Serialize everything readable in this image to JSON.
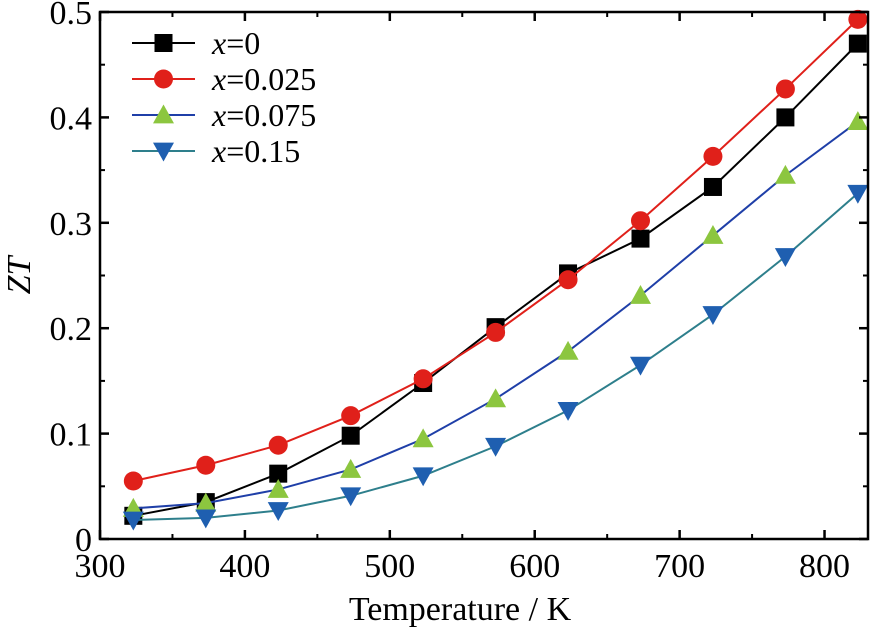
{
  "chart_data": {
    "type": "line",
    "xlabel": "Temperature / K",
    "ylabel": "ZT",
    "xlim": [
      300,
      830
    ],
    "ylim": [
      0,
      0.5
    ],
    "xticks": [
      300,
      400,
      500,
      600,
      700,
      800
    ],
    "yticks": [
      0,
      0.1,
      0.2,
      0.3,
      0.4,
      0.5
    ],
    "xtick_labels": [
      "300",
      "400",
      "500",
      "600",
      "700",
      "800"
    ],
    "ytick_labels": [
      "0",
      "0.1",
      "0.2",
      "0.3",
      "0.4",
      "0.5"
    ],
    "grid": false,
    "legend_position": "top-left",
    "x": [
      323,
      373,
      423,
      473,
      523,
      573,
      623,
      673,
      723,
      773,
      823
    ],
    "series": [
      {
        "name": "x=0",
        "name_var": "x",
        "name_rest": "=0",
        "marker": "square",
        "line_color": "#000000",
        "marker_color": "#000000",
        "values": [
          0.022,
          0.035,
          0.062,
          0.098,
          0.148,
          0.201,
          0.252,
          0.285,
          0.334,
          0.4,
          0.47
        ]
      },
      {
        "name": "x=0.025",
        "name_var": "x",
        "name_rest": "=0.025",
        "marker": "circle",
        "line_color": "#e0201a",
        "marker_color": "#e0201a",
        "values": [
          0.055,
          0.07,
          0.089,
          0.117,
          0.152,
          0.196,
          0.246,
          0.302,
          0.363,
          0.427,
          0.493
        ]
      },
      {
        "name": "x=0.075",
        "name_var": "x",
        "name_rest": "=0.075",
        "marker": "triangle-up",
        "line_color": "#1f3fa8",
        "marker_color": "#8cc63f",
        "values": [
          0.029,
          0.034,
          0.047,
          0.066,
          0.095,
          0.133,
          0.178,
          0.231,
          0.288,
          0.345,
          0.396
        ]
      },
      {
        "name": "x=0.15",
        "name_var": "x",
        "name_rest": "=0.15",
        "marker": "triangle-down",
        "line_color": "#2e7f8c",
        "marker_color": "#1f5fb0",
        "values": [
          0.018,
          0.02,
          0.027,
          0.041,
          0.06,
          0.088,
          0.122,
          0.165,
          0.213,
          0.268,
          0.328
        ]
      }
    ]
  }
}
